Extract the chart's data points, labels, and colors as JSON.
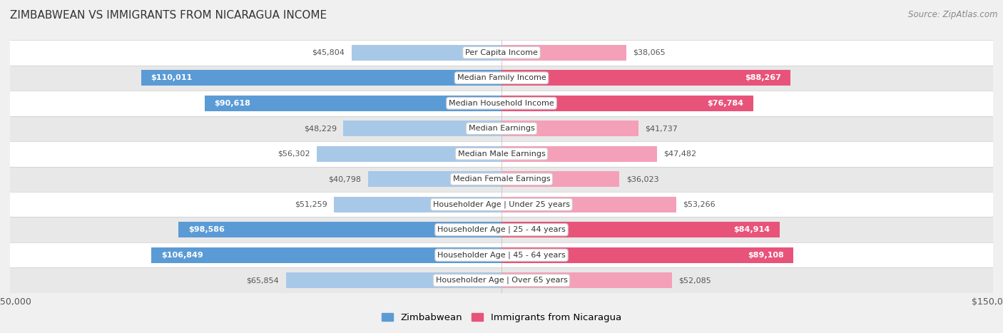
{
  "title": "ZIMBABWEAN VS IMMIGRANTS FROM NICARAGUA INCOME",
  "source": "Source: ZipAtlas.com",
  "categories": [
    "Per Capita Income",
    "Median Family Income",
    "Median Household Income",
    "Median Earnings",
    "Median Male Earnings",
    "Median Female Earnings",
    "Householder Age | Under 25 years",
    "Householder Age | 25 - 44 years",
    "Householder Age | 45 - 64 years",
    "Householder Age | Over 65 years"
  ],
  "zimbabwean": [
    45804,
    110011,
    90618,
    48229,
    56302,
    40798,
    51259,
    98586,
    106849,
    65854
  ],
  "nicaragua": [
    38065,
    88267,
    76784,
    41737,
    47482,
    36023,
    53266,
    84914,
    89108,
    52085
  ],
  "zim_color_light": "#a8c8e8",
  "zim_color_dark": "#5b9bd5",
  "nic_color_light": "#f4a0b8",
  "nic_color_dark": "#e8537a",
  "zim_label": "Zimbabwean",
  "nic_label": "Immigrants from Nicaragua",
  "max_val": 150000,
  "bg_color": "#f0f0f0",
  "row_colors": [
    "#ffffff",
    "#e8e8e8"
  ],
  "threshold": 70000
}
